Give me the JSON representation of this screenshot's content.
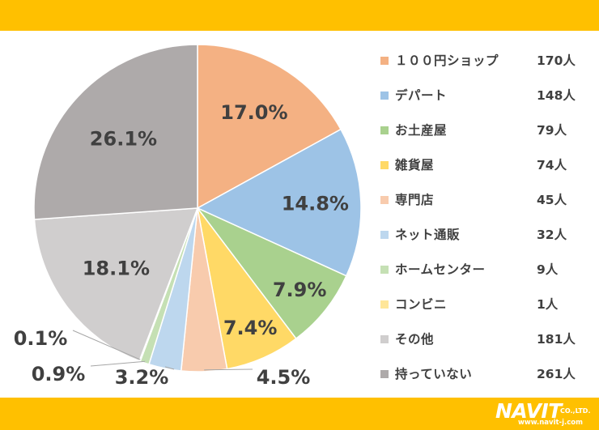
{
  "chart_data": {
    "type": "pie",
    "title": "",
    "start_angle_deg": 0,
    "direction": "clockwise",
    "slices": [
      {
        "label": "１００円ショップ",
        "count": "170人",
        "percent": 17.0,
        "percent_label": "17.0%",
        "color": "#f4b183"
      },
      {
        "label": "デパート",
        "count": "148人",
        "percent": 14.8,
        "percent_label": "14.8%",
        "color": "#9dc3e6"
      },
      {
        "label": "お土産屋",
        "count": "79人",
        "percent": 7.9,
        "percent_label": "7.9%",
        "color": "#a9d18e"
      },
      {
        "label": "雑貨屋",
        "count": "74人",
        "percent": 7.4,
        "percent_label": "7.4%",
        "color": "#ffd966"
      },
      {
        "label": "専門店",
        "count": "45人",
        "percent": 4.5,
        "percent_label": "4.5%",
        "color": "#f8cbad"
      },
      {
        "label": "ネット通販",
        "count": "32人",
        "percent": 3.2,
        "percent_label": "3.2%",
        "color": "#bdd7ee"
      },
      {
        "label": "ホームセンター",
        "count": "9人",
        "percent": 0.9,
        "percent_label": "0.9%",
        "color": "#c5e0b4"
      },
      {
        "label": "コンビニ",
        "count": "1人",
        "percent": 0.1,
        "percent_label": "0.1%",
        "color": "#ffe699"
      },
      {
        "label": "その他",
        "count": "181人",
        "percent": 18.1,
        "percent_label": "18.1%",
        "color": "#d0cece"
      },
      {
        "label": "持っていない",
        "count": "261人",
        "percent": 26.1,
        "percent_label": "26.1%",
        "color": "#aeaaaa"
      }
    ],
    "legend_position": "right"
  },
  "brand": {
    "logo_text": "NAVIT",
    "logo_suffix": "CO.,LTD.",
    "logo_url": "www.navit-j.com",
    "band_color": "#ffc000"
  }
}
